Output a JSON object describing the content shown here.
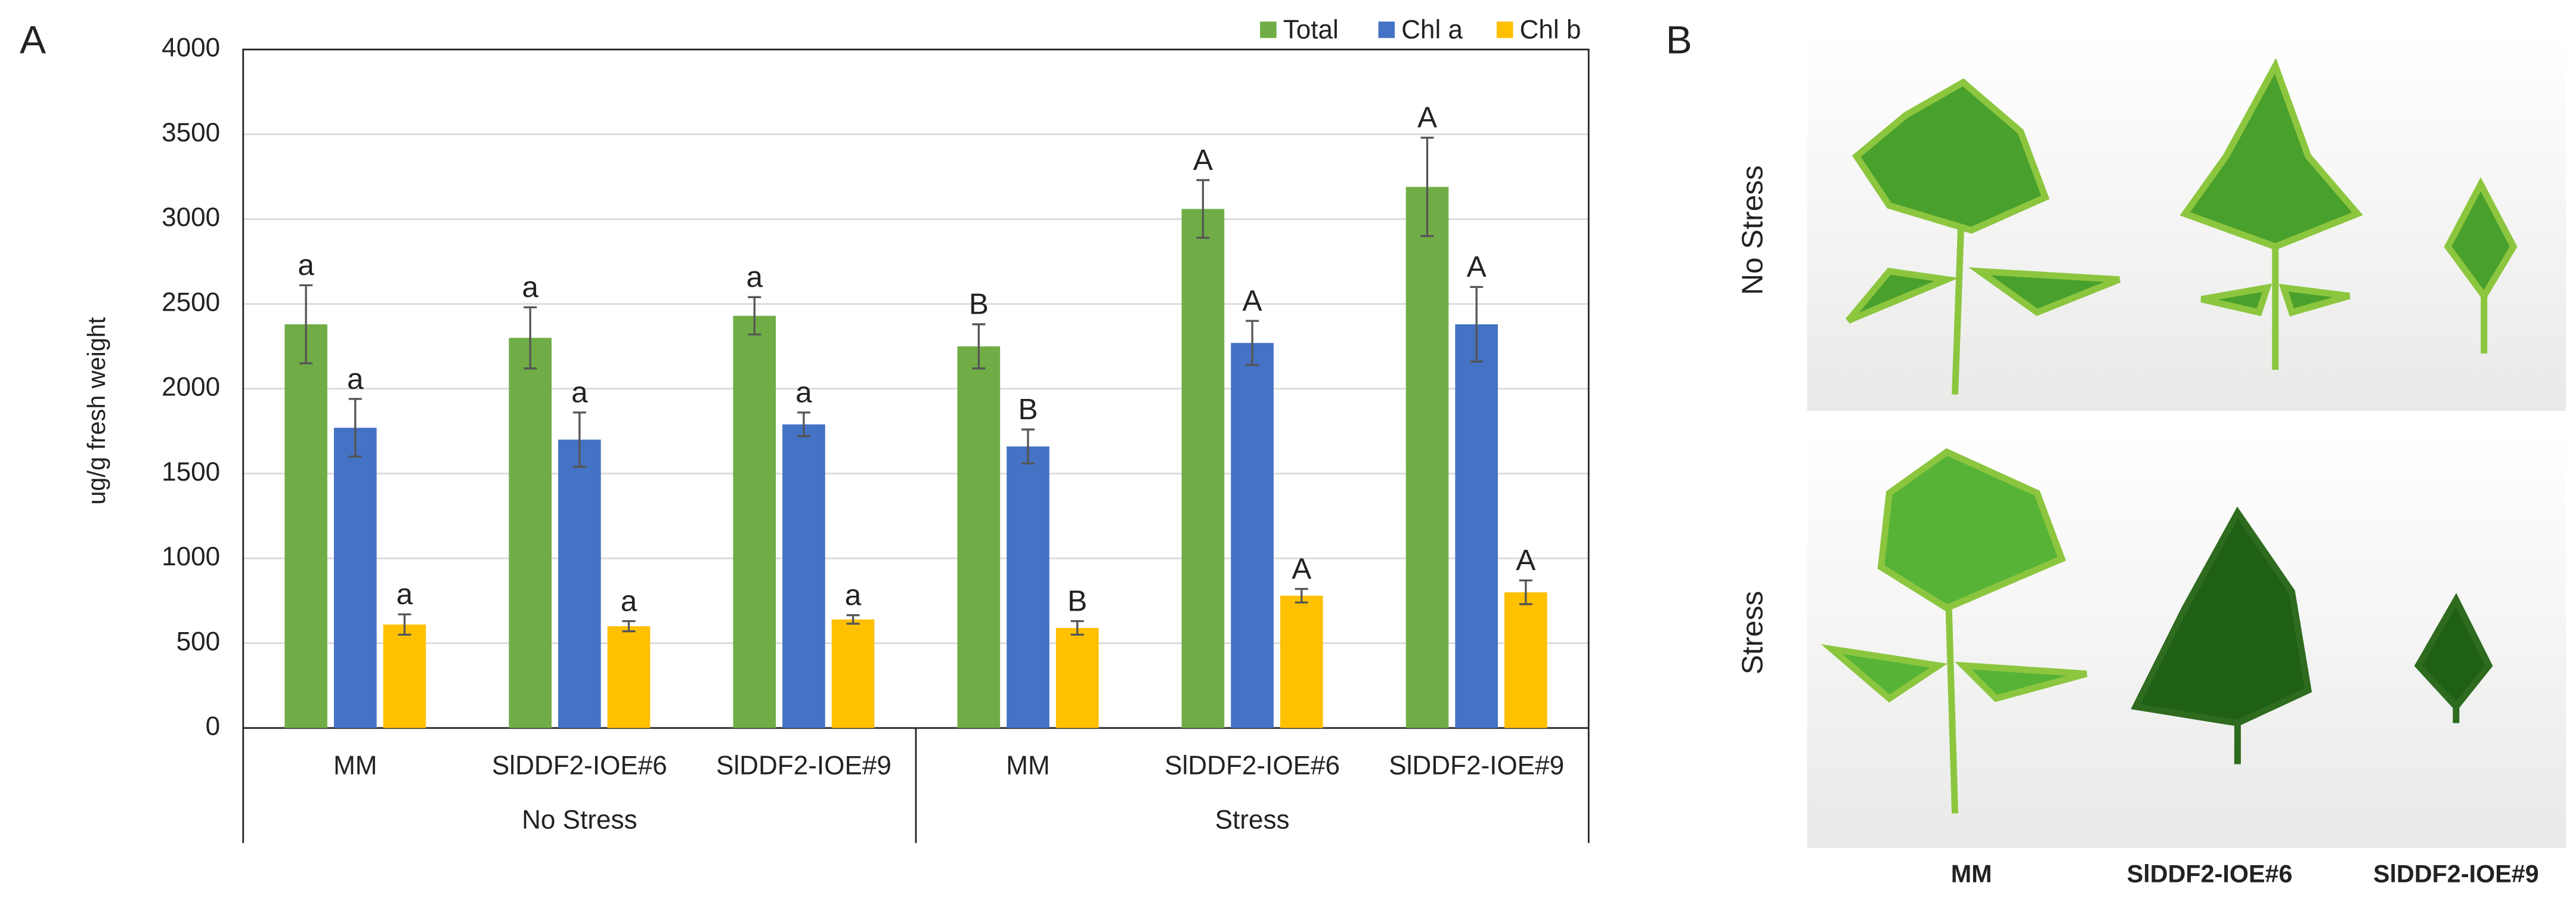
{
  "chart_data": {
    "type": "bar",
    "panel_label": "A",
    "ylabel": "ug/g fresh weight",
    "categories": [
      "MM",
      "SlDDF2-IOE#6",
      "SlDDF2-IOE#9",
      "MM",
      "SlDDF2-IOE#6",
      "SlDDF2-IOE#9"
    ],
    "groups": [
      "No Stress",
      "Stress"
    ],
    "series": [
      {
        "name": "Total",
        "color": "#70ad47",
        "values": [
          2380,
          2300,
          2430,
          2250,
          3060,
          3190
        ],
        "errors": [
          230,
          180,
          110,
          130,
          170,
          290
        ],
        "letters": [
          "a",
          "a",
          "a",
          "B",
          "A",
          "A"
        ]
      },
      {
        "name": "Chl a",
        "color": "#4472c4",
        "values": [
          1770,
          1700,
          1790,
          1660,
          2270,
          2380
        ],
        "errors": [
          170,
          160,
          70,
          100,
          130,
          220
        ],
        "letters": [
          "a",
          "a",
          "a",
          "B",
          "A",
          "A"
        ]
      },
      {
        "name": "Chl b",
        "color": "#ffc000",
        "values": [
          610,
          600,
          640,
          590,
          780,
          800
        ],
        "errors": [
          60,
          30,
          25,
          40,
          40,
          70
        ],
        "letters": [
          "a",
          "a",
          "a",
          "B",
          "A",
          "A"
        ]
      }
    ],
    "ylim": [
      0,
      4000
    ],
    "yticks": [
      0,
      500,
      1000,
      1500,
      2000,
      2500,
      3000,
      3500,
      4000
    ],
    "grid": true,
    "legend": "top-right"
  },
  "photo_panel": {
    "label": "B",
    "rows": [
      "No Stress",
      "Stress"
    ],
    "columns": [
      "MM",
      "SlDDF2-IOE#6",
      "SlDDF2-IOE#9"
    ]
  }
}
